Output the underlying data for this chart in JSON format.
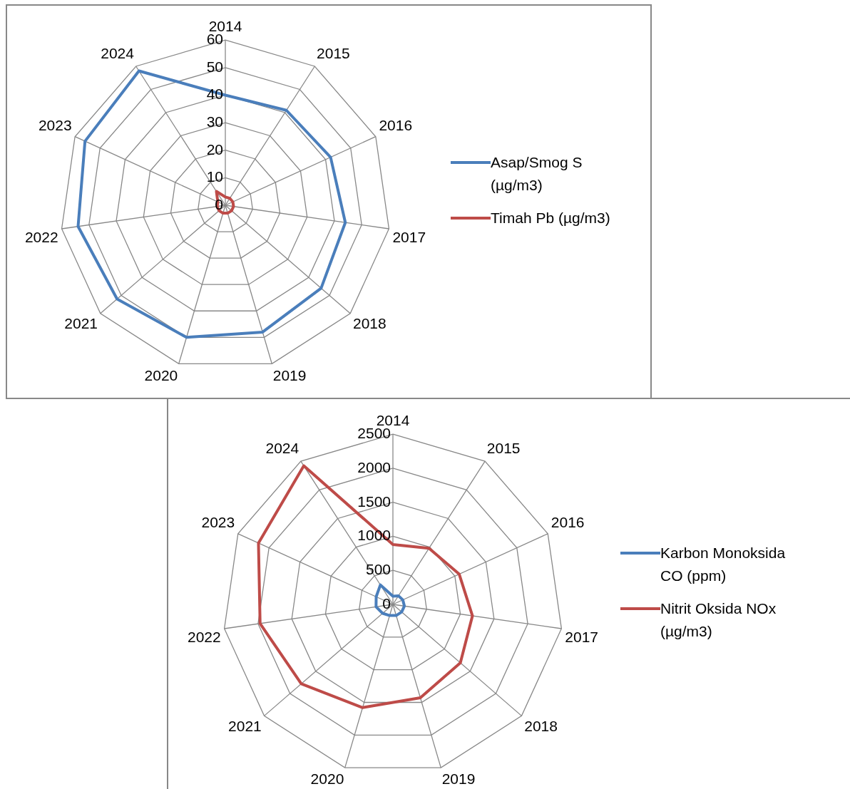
{
  "chart_data": [
    {
      "type": "radar",
      "categories": [
        "2014",
        "2015",
        "2016",
        "2017",
        "2018",
        "2019",
        "2020",
        "2021",
        "2022",
        "2023",
        "2024"
      ],
      "series": [
        {
          "name": "Asap/Smog S (µg/m3)",
          "color": "#4a7ebb",
          "values": [
            40,
            41,
            42,
            44,
            46,
            48,
            50,
            52,
            54,
            56,
            58
          ]
        },
        {
          "name": "Timah Pb (µg/m3)",
          "color": "#be4b48",
          "values": [
            3,
            3,
            3,
            3,
            3,
            3,
            3,
            3,
            3,
            3,
            6
          ]
        }
      ],
      "ylim": [
        0,
        60
      ],
      "yticks": [
        0,
        10,
        20,
        30,
        40,
        50,
        60
      ],
      "grid": true,
      "legend": "right",
      "marker": "none"
    },
    {
      "type": "radar",
      "categories": [
        "2014",
        "2015",
        "2016",
        "2017",
        "2018",
        "2019",
        "2020",
        "2021",
        "2022",
        "2023",
        "2024"
      ],
      "series": [
        {
          "name": "Karbon Monoksida CO (ppm)",
          "color": "#4a7ebb",
          "values": [
            120,
            150,
            160,
            170,
            170,
            170,
            170,
            200,
            250,
            270,
            340
          ]
        },
        {
          "name": "Nitrit Oksida NOx (µg/m3)",
          "color": "#be4b48",
          "values": [
            880,
            980,
            1070,
            1180,
            1310,
            1430,
            1580,
            1780,
            1970,
            2170,
            2420
          ]
        }
      ],
      "ylim": [
        0,
        2500
      ],
      "yticks": [
        0,
        500,
        1000,
        1500,
        2000,
        2500
      ],
      "grid": true,
      "legend": "right",
      "marker": "none"
    }
  ]
}
